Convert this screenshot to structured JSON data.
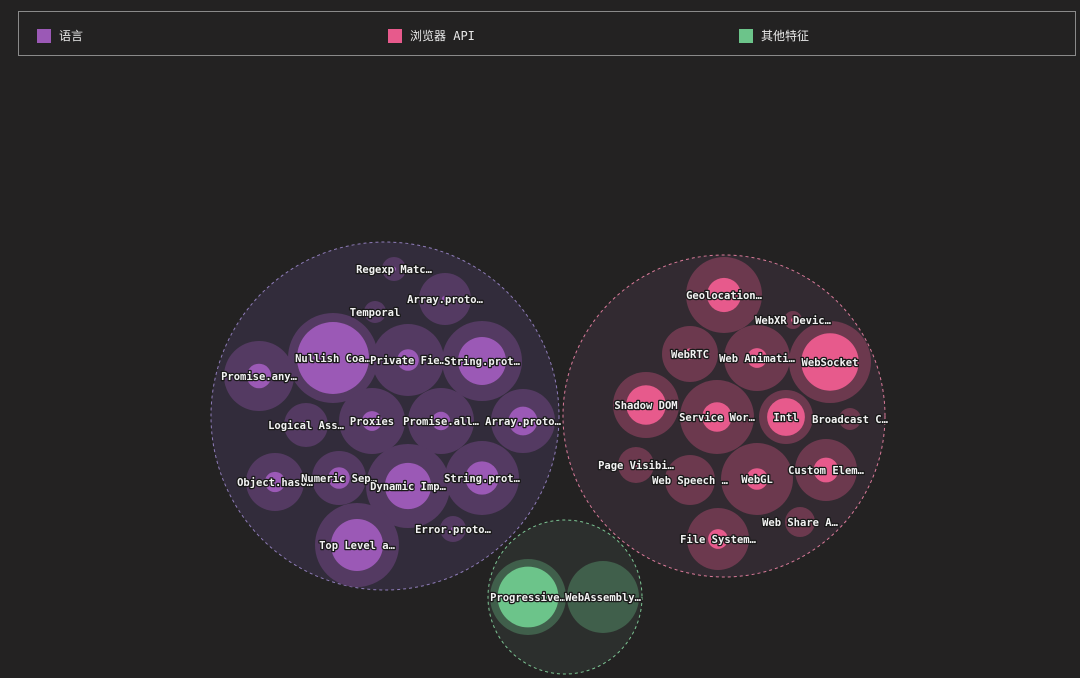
{
  "legend": [
    {
      "label": "语言",
      "color": "#9b59b6"
    },
    {
      "label": "浏览器 API",
      "color": "#e75a8c"
    },
    {
      "label": "其他特征",
      "color": "#6cc48a"
    }
  ],
  "chart_data": {
    "type": "bubble",
    "groups": [
      {
        "name": "语言",
        "color": "#9b59b6",
        "items": [
          {
            "label": "Regexp Matc…",
            "value": 12,
            "inner": 0.18
          },
          {
            "label": "Array.proto…",
            "value": 26,
            "inner": 0.12
          },
          {
            "label": "Temporal",
            "value": 11,
            "inner": 0.05
          },
          {
            "label": "Nullish Coa…",
            "value": 45,
            "inner": 0.8
          },
          {
            "label": "Private Fie…",
            "value": 36,
            "inner": 0.3
          },
          {
            "label": "String.prot…",
            "value": 40,
            "inner": 0.6
          },
          {
            "label": "Promise.any…",
            "value": 35,
            "inner": 0.35
          },
          {
            "label": "Logical Ass…",
            "value": 22,
            "inner": 0.2
          },
          {
            "label": "Proxies",
            "value": 33,
            "inner": 0.3
          },
          {
            "label": "Promise.all…",
            "value": 33,
            "inner": 0.28
          },
          {
            "label": "Array.proto…",
            "value": 32,
            "inner": 0.45
          },
          {
            "label": "Object.hasO…",
            "value": 29,
            "inner": 0.35
          },
          {
            "label": "Numeric Sep…",
            "value": 27,
            "inner": 0.4
          },
          {
            "label": "Dynamic Imp…",
            "value": 42,
            "inner": 0.55
          },
          {
            "label": "String.prot…",
            "value": 37,
            "inner": 0.45
          },
          {
            "label": "Error.proto…",
            "value": 13,
            "inner": 0.04
          },
          {
            "label": "Top Level a…",
            "value": 42,
            "inner": 0.62
          }
        ]
      },
      {
        "name": "浏览器 API",
        "color": "#e75a8c",
        "items": [
          {
            "label": "Geolocation…",
            "value": 38,
            "inner": 0.45
          },
          {
            "label": "WebXR Devic…",
            "value": 9,
            "inner": 0.05
          },
          {
            "label": "WebRTC",
            "value": 28,
            "inner": 0.2
          },
          {
            "label": "Web Animati…",
            "value": 33,
            "inner": 0.3
          },
          {
            "label": "WebSocket",
            "value": 41,
            "inner": 0.7
          },
          {
            "label": "Shadow DOM",
            "value": 33,
            "inner": 0.6
          },
          {
            "label": "Service Wor…",
            "value": 37,
            "inner": 0.4
          },
          {
            "label": "Intl",
            "value": 27,
            "inner": 0.7
          },
          {
            "label": "Broadcast C…",
            "value": 11,
            "inner": 0.05
          },
          {
            "label": "Page Visibi…",
            "value": 18,
            "inner": 0.25
          },
          {
            "label": "Web Speech …",
            "value": 25,
            "inner": 0.05
          },
          {
            "label": "WebGL",
            "value": 36,
            "inner": 0.3
          },
          {
            "label": "Custom Elem…",
            "value": 31,
            "inner": 0.4
          },
          {
            "label": "Web Share A…",
            "value": 15,
            "inner": 0.12
          },
          {
            "label": "File System…",
            "value": 31,
            "inner": 0.32
          }
        ]
      },
      {
        "name": "其他特征",
        "color": "#6cc48a",
        "items": [
          {
            "label": "Progressive…",
            "value": 38,
            "inner": 0.8
          },
          {
            "label": "WebAssembly…",
            "value": 36,
            "inner": 0.04
          }
        ]
      }
    ]
  }
}
